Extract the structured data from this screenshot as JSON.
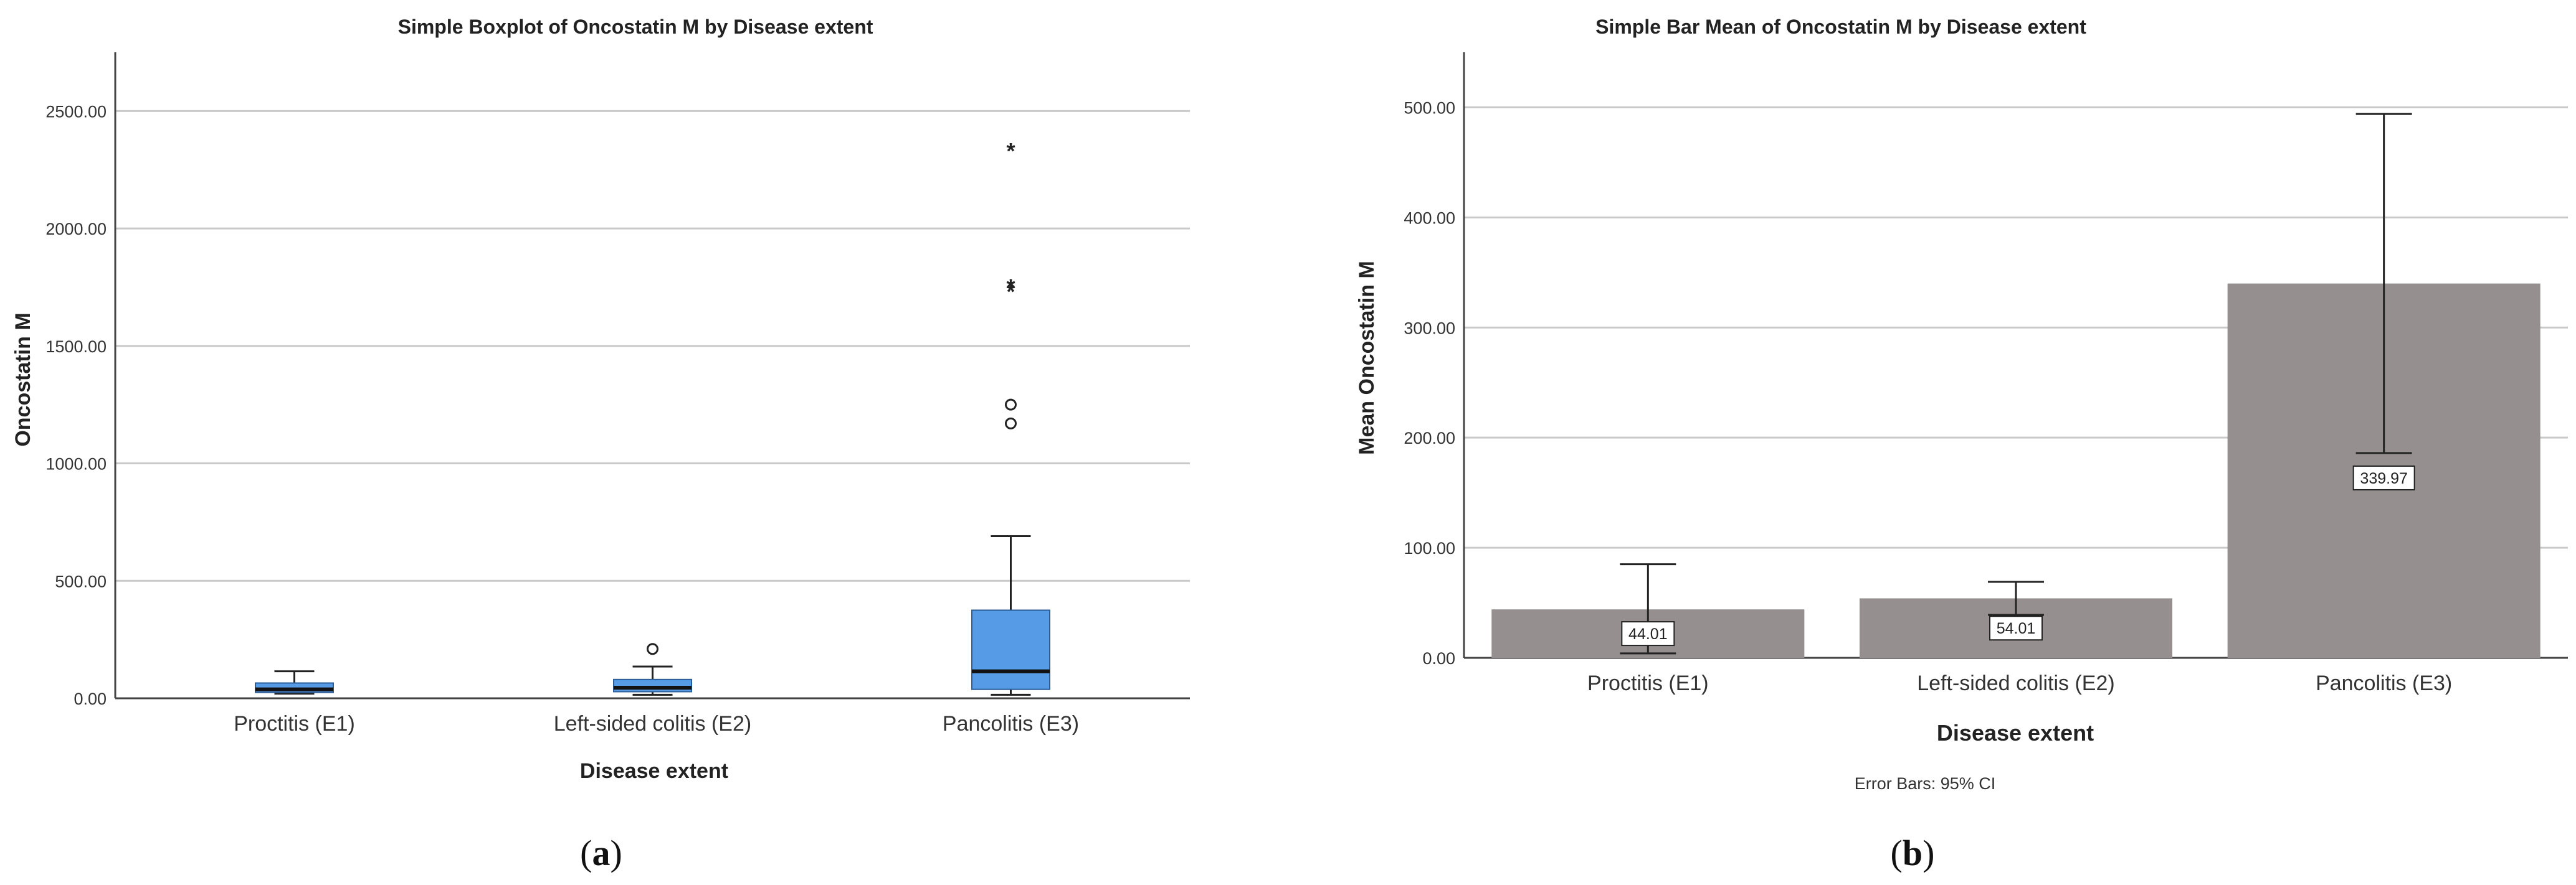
{
  "chart_data": [
    {
      "type": "boxplot",
      "title": "Simple Boxplot of Oncostatin M by Disease extent",
      "xlabel": "Disease extent",
      "ylabel": "Oncostatin M",
      "ylim": [
        0,
        2750
      ],
      "yticks": [
        "0.00",
        "500.00",
        "1000.00",
        "1500.00",
        "2000.00",
        "2500.00"
      ],
      "grid": true,
      "box_color": "#559be6",
      "categories": [
        "Proctitis (E1)",
        "Left-sided colitis (E2)",
        "Pancolitis (E3)"
      ],
      "boxes": [
        {
          "min": 20,
          "q1": 25,
          "median": 38,
          "q3": 65,
          "max": 115,
          "outliers": [],
          "extremes": []
        },
        {
          "min": 15,
          "q1": 28,
          "median": 45,
          "q3": 80,
          "max": 135,
          "outliers": [
            210
          ],
          "extremes": []
        },
        {
          "min": 15,
          "q1": 38,
          "median": 115,
          "q3": 375,
          "max": 690,
          "outliers": [
            1170,
            1250
          ],
          "extremes": [
            1740,
            1760,
            2340
          ]
        }
      ],
      "panel_label": "a"
    },
    {
      "type": "bar",
      "title": "Simple Bar Mean of Oncostatin M by Disease extent",
      "xlabel": "Disease extent",
      "ylabel": "Mean Oncostatin M",
      "ylim": [
        0,
        550
      ],
      "yticks": [
        "0.00",
        "100.00",
        "200.00",
        "300.00",
        "400.00",
        "500.00"
      ],
      "grid": true,
      "bar_color": "#958f8f",
      "categories": [
        "Proctitis (E1)",
        "Left-sided colitis (E2)",
        "Pancolitis (E3)"
      ],
      "values": [
        44.01,
        54.01,
        339.97
      ],
      "value_labels": [
        "44.01",
        "54.01",
        "339.97"
      ],
      "ci_lower": [
        4,
        39,
        186
      ],
      "ci_upper": [
        85,
        69,
        494
      ],
      "footnote": "Error Bars: 95% CI",
      "panel_label": "b"
    }
  ]
}
